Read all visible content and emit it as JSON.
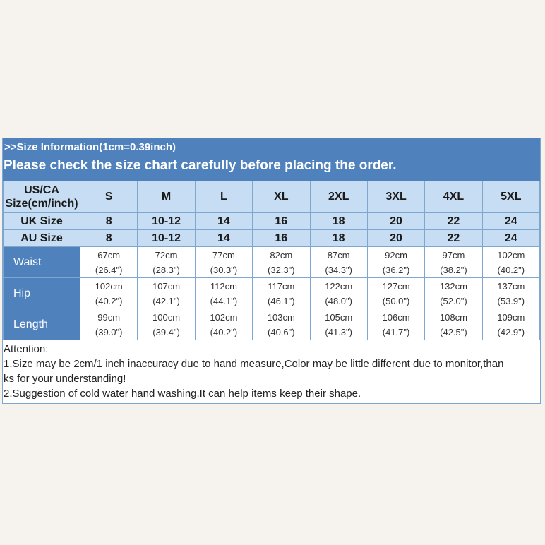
{
  "header": {
    "info_line": ">>Size Information(1cm=0.39inch)",
    "notice_line": "Please check the size chart carefully before placing the order."
  },
  "table": {
    "corner_label_line1": "US/CA",
    "corner_label_line2": "Size(cm/inch)",
    "sizes": [
      "S",
      "M",
      "L",
      "XL",
      "2XL",
      "3XL",
      "4XL",
      "5XL"
    ],
    "uk_label": "UK Size",
    "uk_values": [
      "8",
      "10-12",
      "14",
      "16",
      "18",
      "20",
      "22",
      "24"
    ],
    "au_label": "AU Size",
    "au_values": [
      "8",
      "10-12",
      "14",
      "16",
      "18",
      "20",
      "22",
      "24"
    ],
    "measurements": [
      {
        "label": "Waist",
        "cm": [
          "67cm",
          "72cm",
          "77cm",
          "82cm",
          "87cm",
          "92cm",
          "97cm",
          "102cm"
        ],
        "inch": [
          "(26.4\")",
          "(28.3\")",
          "(30.3\")",
          "(32.3\")",
          "(34.3\")",
          "(36.2\")",
          "(38.2\")",
          "(40.2\")"
        ]
      },
      {
        "label": "Hip",
        "cm": [
          "102cm",
          "107cm",
          "112cm",
          "117cm",
          "122cm",
          "127cm",
          "132cm",
          "137cm"
        ],
        "inch": [
          "(40.2\")",
          "(42.1\")",
          "(44.1\")",
          "(46.1\")",
          "(48.0\")",
          "(50.0\")",
          "(52.0\")",
          "(53.9\")"
        ]
      },
      {
        "label": "Length",
        "cm": [
          "99cm",
          "100cm",
          "102cm",
          "103cm",
          "105cm",
          "106cm",
          "108cm",
          "109cm"
        ],
        "inch": [
          "(39.0\")",
          "(39.4\")",
          "(40.2\")",
          "(40.6\")",
          "(41.3\")",
          "(41.7\")",
          "(42.5\")",
          "(42.9\")"
        ]
      }
    ]
  },
  "notes": {
    "title": "Attention:",
    "line1": "1.Size may be 2cm/1 inch inaccuracy due to hand measure,Color may be little different due to monitor,than",
    "line1_cont": "ks for your understanding!",
    "line2": "2.Suggestion of cold water hand washing.It can help items keep their shape."
  },
  "colors": {
    "header_blue": "#4f81bd",
    "light_blue": "#c6ddf3",
    "border_blue": "#7fa6cf",
    "page_bg": "#f6f2ee"
  }
}
